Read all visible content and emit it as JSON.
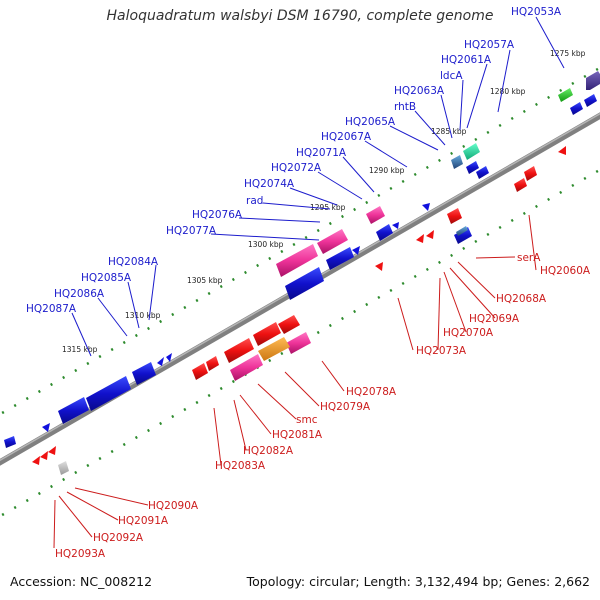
{
  "title": "Haloquadratum walsbyi DSM 16790, complete genome",
  "footer": {
    "accession": "Accession: NC_008212",
    "info": "Topology: circular; Length: 3,132,494 bp; Genes: 2,662"
  },
  "colors": {
    "forward_label": "#1c1ccc",
    "reverse_label": "#cc1c1c",
    "backbone": "#888888",
    "tick": "#2e8b2e",
    "forward_gene": "#1111dd",
    "reverse_gene": "#ee1111",
    "pink_gene": "#ee3399",
    "green_gene": "#22cc22",
    "teal_gene": "#22ddaa",
    "orange_gene": "#ee9922",
    "purple_gene": "#554499",
    "grey_gene": "#bbbbbb"
  },
  "kbp_labels": [
    "1275 kbp",
    "1280 kbp",
    "1285 kbp",
    "1290 kbp",
    "1295 kbp",
    "1300 kbp",
    "1305 kbp",
    "1310 kbp",
    "1315 kbp"
  ],
  "forward_labels": [
    "HQ2053A",
    "HQ2057A",
    "HQ2061A",
    "ldcA",
    "HQ2063A",
    "rhtB",
    "HQ2065A",
    "HQ2067A",
    "HQ2071A",
    "HQ2072A",
    "HQ2074A",
    "rad",
    "HQ2076A",
    "HQ2077A",
    "HQ2084A",
    "HQ2085A",
    "HQ2086A",
    "HQ2087A"
  ],
  "reverse_labels": [
    "HQ2060A",
    "serA",
    "HQ2068A",
    "HQ2069A",
    "HQ2070A",
    "HQ2073A",
    "HQ2078A",
    "HQ2079A",
    "smc",
    "HQ2081A",
    "HQ2082A",
    "HQ2083A",
    "HQ2090A",
    "HQ2091A",
    "HQ2092A",
    "HQ2093A"
  ]
}
